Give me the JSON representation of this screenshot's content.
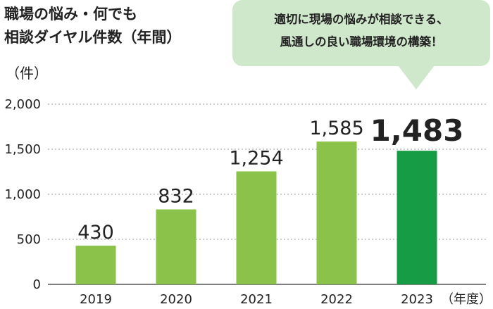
{
  "header": {
    "title_line1": "職場の悩み・何でも",
    "title_line2": "相談ダイヤル件数（年間）"
  },
  "callout": {
    "line1": "適切に現場の悩みが相談できる、",
    "line2": "風通しの良い職場環境の構築！"
  },
  "colors": {
    "bar": "#8bc34a",
    "bar_highlight": "#169c44",
    "callout_bg": "#cfe8cb",
    "grid": "#999999"
  },
  "chart_data": {
    "type": "bar",
    "title": "職場の悩み・何でも相談ダイヤル件数（年間）",
    "ylabel": "（件）",
    "xlabel": "（年度）",
    "categories": [
      "2019",
      "2020",
      "2021",
      "2022",
      "2023"
    ],
    "values": [
      430,
      832,
      1254,
      1585,
      1483
    ],
    "value_labels": [
      "430",
      "832",
      "1,254",
      "1,585",
      "1,483"
    ],
    "highlight_index": 4,
    "ylim": [
      0,
      2000
    ],
    "yticks": [
      0,
      500,
      1000,
      1500,
      2000
    ],
    "ytick_labels": [
      "0",
      "500",
      "1,000",
      "1,500",
      "2,000"
    ],
    "grid": true
  }
}
